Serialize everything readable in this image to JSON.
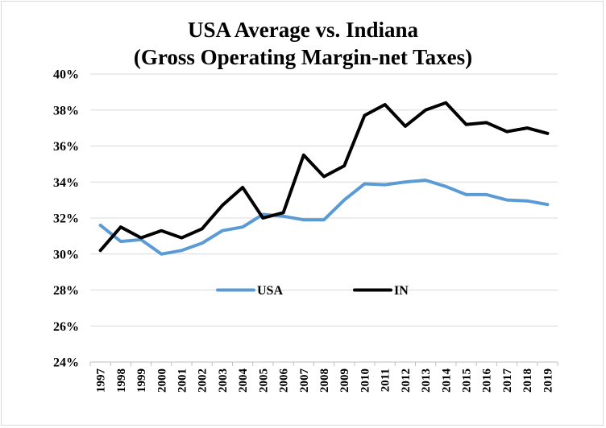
{
  "chart_data": {
    "type": "line",
    "title": "USA Average vs. Indiana",
    "subtitle": "(Gross Operating Margin-net Taxes)",
    "xlabel": "",
    "ylabel": "",
    "x": [
      "1997",
      "1998",
      "1999",
      "2000",
      "2001",
      "2002",
      "2003",
      "2004",
      "2005",
      "2006",
      "2007",
      "2008",
      "2009",
      "2010",
      "2011",
      "2012",
      "2013",
      "2014",
      "2015",
      "2016",
      "2017",
      "2018",
      "2019"
    ],
    "ylim": [
      0.24,
      0.4
    ],
    "y_ticks": [
      0.24,
      0.26,
      0.28,
      0.3,
      0.32,
      0.34,
      0.36,
      0.38,
      0.4
    ],
    "y_tick_labels": [
      "24%",
      "26%",
      "28%",
      "30%",
      "32%",
      "34%",
      "36%",
      "38%",
      "40%"
    ],
    "grid": "horizontal",
    "legend_position": "inside-center",
    "series": [
      {
        "name": "USA",
        "color": "#5b9bd5",
        "values": [
          0.316,
          0.307,
          0.308,
          0.3,
          0.302,
          0.306,
          0.313,
          0.315,
          0.322,
          0.321,
          0.319,
          0.319,
          0.33,
          0.339,
          0.3385,
          0.34,
          0.341,
          0.3375,
          0.333,
          0.333,
          0.33,
          0.3295,
          0.3275
        ]
      },
      {
        "name": "IN",
        "color": "#000000",
        "values": [
          0.302,
          0.315,
          0.309,
          0.313,
          0.309,
          0.314,
          0.327,
          0.337,
          0.32,
          0.323,
          0.355,
          0.343,
          0.349,
          0.377,
          0.383,
          0.371,
          0.38,
          0.384,
          0.372,
          0.373,
          0.368,
          0.37,
          0.367
        ]
      }
    ]
  }
}
